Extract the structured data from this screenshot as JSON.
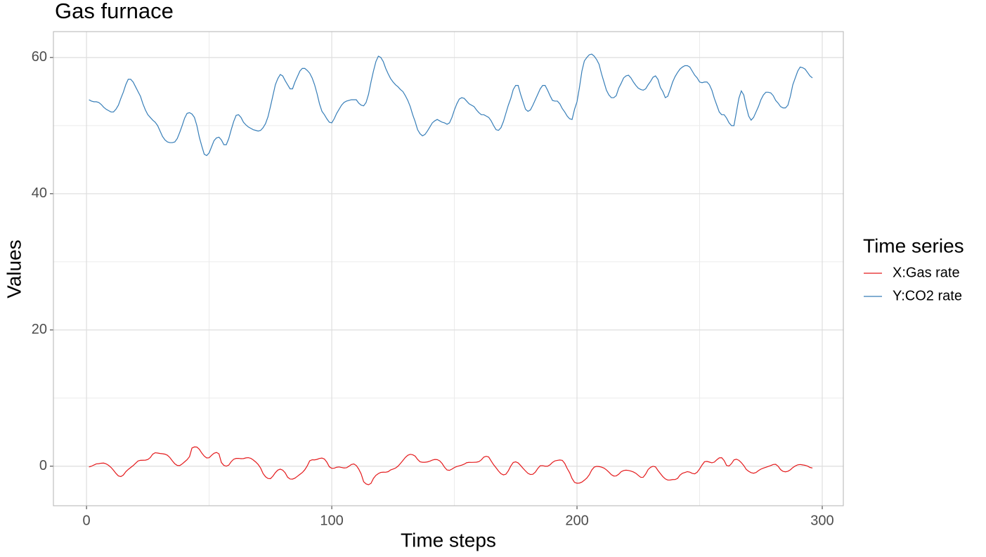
{
  "chart_data": {
    "type": "line",
    "title": "Gas furnace",
    "x_label": "Time steps",
    "y_label": "Values",
    "legend_title": "Time series",
    "legend_position": "right",
    "grid": true,
    "xlim": [
      -13.5,
      308.6
    ],
    "ylim": [
      -5.8,
      63.8
    ],
    "xticks": [
      0,
      100,
      200,
      300
    ],
    "yticks": [
      0,
      20,
      40,
      60
    ],
    "x_minor_ticks": [
      50,
      150,
      250
    ],
    "y_minor_ticks": [
      10,
      30,
      50
    ],
    "x": [
      1,
      2,
      3,
      4,
      5,
      6,
      7,
      8,
      9,
      10,
      11,
      12,
      13,
      14,
      15,
      16,
      17,
      18,
      19,
      20,
      21,
      22,
      23,
      24,
      25,
      26,
      27,
      28,
      29,
      30,
      31,
      32,
      33,
      34,
      35,
      36,
      37,
      38,
      39,
      40,
      41,
      42,
      43,
      44,
      45,
      46,
      47,
      48,
      49,
      50,
      51,
      52,
      53,
      54,
      55,
      56,
      57,
      58,
      59,
      60,
      61,
      62,
      63,
      64,
      65,
      66,
      67,
      68,
      69,
      70,
      71,
      72,
      73,
      74,
      75,
      76,
      77,
      78,
      79,
      80,
      81,
      82,
      83,
      84,
      85,
      86,
      87,
      88,
      89,
      90,
      91,
      92,
      93,
      94,
      95,
      96,
      97,
      98,
      99,
      100,
      101,
      102,
      103,
      104,
      105,
      106,
      107,
      108,
      109,
      110,
      111,
      112,
      113,
      114,
      115,
      116,
      117,
      118,
      119,
      120,
      121,
      122,
      123,
      124,
      125,
      126,
      127,
      128,
      129,
      130,
      131,
      132,
      133,
      134,
      135,
      136,
      137,
      138,
      139,
      140,
      141,
      142,
      143,
      144,
      145,
      146,
      147,
      148,
      149,
      150,
      151,
      152,
      153,
      154,
      155,
      156,
      157,
      158,
      159,
      160,
      161,
      162,
      163,
      164,
      165,
      166,
      167,
      168,
      169,
      170,
      171,
      172,
      173,
      174,
      175,
      176,
      177,
      178,
      179,
      180,
      181,
      182,
      183,
      184,
      185,
      186,
      187,
      188,
      189,
      190,
      191,
      192,
      193,
      194,
      195,
      196,
      197,
      198,
      199,
      200,
      201,
      202,
      203,
      204,
      205,
      206,
      207,
      208,
      209,
      210,
      211,
      212,
      213,
      214,
      215,
      216,
      217,
      218,
      219,
      220,
      221,
      222,
      223,
      224,
      225,
      226,
      227,
      228,
      229,
      230,
      231,
      232,
      233,
      234,
      235,
      236,
      237,
      238,
      239,
      240,
      241,
      242,
      243,
      244,
      245,
      246,
      247,
      248,
      249,
      250,
      251,
      252,
      253,
      254,
      255,
      256,
      257,
      258,
      259,
      260,
      261,
      262,
      263,
      264,
      265,
      266,
      267,
      268,
      269,
      270,
      271,
      272,
      273,
      274,
      275,
      276,
      277,
      278,
      279,
      280,
      281,
      282,
      283,
      284,
      285,
      286,
      287,
      288,
      289,
      290,
      291,
      292,
      293,
      294,
      295,
      296
    ],
    "series": [
      {
        "name": "X:Gas rate",
        "color": "#e41a1c",
        "values": [
          -0.109,
          0.0,
          0.178,
          0.339,
          0.373,
          0.441,
          0.461,
          0.348,
          0.127,
          -0.18,
          -0.588,
          -1.055,
          -1.421,
          -1.52,
          -1.302,
          -0.814,
          -0.475,
          -0.193,
          0.088,
          0.435,
          0.771,
          0.866,
          0.875,
          0.891,
          0.987,
          1.263,
          1.775,
          1.976,
          1.934,
          1.866,
          1.832,
          1.767,
          1.608,
          1.265,
          0.79,
          0.36,
          0.115,
          0.088,
          0.331,
          0.645,
          0.96,
          1.409,
          2.67,
          2.834,
          2.812,
          2.483,
          1.929,
          1.485,
          1.214,
          1.239,
          1.608,
          1.905,
          2.023,
          1.815,
          0.535,
          0.122,
          0.009,
          0.164,
          0.671,
          1.019,
          1.146,
          1.155,
          1.112,
          1.121,
          1.223,
          1.257,
          1.157,
          0.913,
          0.62,
          0.255,
          -0.28,
          -1.08,
          -1.551,
          -1.799,
          -1.825,
          -1.456,
          -0.944,
          -0.57,
          -0.431,
          -0.577,
          -0.96,
          -1.616,
          -1.875,
          -1.891,
          -1.746,
          -1.474,
          -1.201,
          -0.927,
          -0.524,
          0.04,
          0.788,
          0.943,
          0.93,
          1.006,
          1.137,
          1.198,
          1.054,
          0.595,
          -0.08,
          -0.314,
          -0.288,
          -0.153,
          -0.109,
          -0.187,
          -0.255,
          -0.229,
          -0.007,
          0.254,
          0.33,
          0.102,
          -0.423,
          -1.139,
          -2.275,
          -2.594,
          -2.716,
          -2.51,
          -1.79,
          -1.346,
          -1.081,
          -0.91,
          -0.876,
          -0.885,
          -0.8,
          -0.544,
          -0.416,
          -0.271,
          0.0,
          0.403,
          0.841,
          1.285,
          1.607,
          1.746,
          1.683,
          1.485,
          0.993,
          0.648,
          0.577,
          0.577,
          0.632,
          0.747,
          0.9,
          0.993,
          0.968,
          0.79,
          0.399,
          -0.161,
          -0.553,
          -0.603,
          -0.424,
          -0.194,
          -0.049,
          0.06,
          0.161,
          0.301,
          0.517,
          0.566,
          0.56,
          0.573,
          0.592,
          0.671,
          0.933,
          1.337,
          1.46,
          1.353,
          0.772,
          0.218,
          -0.237,
          -0.714,
          -1.099,
          -1.269,
          -1.175,
          -0.676,
          0.033,
          0.556,
          0.643,
          0.484,
          0.109,
          -0.31,
          -0.697,
          -1.047,
          -1.218,
          -1.183,
          -0.873,
          -0.336,
          0.063,
          0.084,
          0.0,
          0.001,
          0.209,
          0.556,
          0.782,
          0.858,
          0.918,
          0.862,
          0.416,
          -0.336,
          -0.959,
          -1.813,
          -2.378,
          -2.499,
          -2.473,
          -2.33,
          -2.053,
          -1.739,
          -1.261,
          -0.569,
          -0.137,
          -0.024,
          -0.05,
          -0.135,
          -0.276,
          -0.534,
          -0.871,
          -1.243,
          -1.439,
          -1.422,
          -1.175,
          -0.813,
          -0.634,
          -0.582,
          -0.625,
          -0.713,
          -0.848,
          -1.039,
          -1.346,
          -1.628,
          -1.619,
          -1.149,
          -0.488,
          -0.16,
          -0.007,
          -0.092,
          -0.62,
          -1.086,
          -1.525,
          -1.858,
          -2.029,
          -2.024,
          -1.961,
          -1.952,
          -1.794,
          -1.302,
          -1.03,
          -0.918,
          -0.798,
          -0.867,
          -1.047,
          -1.123,
          -0.876,
          -0.395,
          0.185,
          0.662,
          0.709,
          0.605,
          0.501,
          0.603,
          0.943,
          1.223,
          1.249,
          0.824,
          0.102,
          0.025,
          0.382,
          0.922,
          1.032,
          0.866,
          0.527,
          0.093,
          -0.458,
          -0.748,
          -0.947,
          -1.029,
          -0.928,
          -0.645,
          -0.424,
          -0.276,
          -0.158,
          -0.033,
          0.102,
          0.251,
          0.28,
          0.0,
          -0.493,
          -0.759,
          -0.824,
          -0.74,
          -0.528,
          -0.204,
          0.034,
          0.204,
          0.253,
          0.195,
          0.131,
          0.017,
          -0.182,
          -0.262
        ]
      },
      {
        "name": "Y:CO2 rate",
        "color": "#377eb8",
        "values": [
          53.8,
          53.6,
          53.5,
          53.5,
          53.4,
          53.1,
          52.7,
          52.4,
          52.2,
          52.0,
          52.0,
          52.4,
          53.0,
          54.0,
          54.9,
          56.0,
          56.8,
          56.8,
          56.4,
          55.7,
          55.0,
          54.3,
          53.2,
          52.3,
          51.6,
          51.2,
          50.8,
          50.5,
          50.0,
          49.2,
          48.4,
          47.9,
          47.6,
          47.5,
          47.5,
          47.6,
          48.1,
          49.0,
          50.0,
          51.1,
          51.8,
          51.9,
          51.7,
          51.2,
          50.0,
          48.3,
          47.0,
          45.8,
          45.6,
          46.0,
          46.9,
          47.8,
          48.2,
          48.3,
          47.9,
          47.2,
          47.2,
          48.1,
          49.4,
          50.6,
          51.5,
          51.6,
          51.2,
          50.5,
          50.1,
          49.8,
          49.6,
          49.4,
          49.3,
          49.2,
          49.3,
          49.7,
          50.3,
          51.3,
          52.8,
          54.4,
          56.0,
          56.9,
          57.5,
          57.3,
          56.6,
          56.0,
          55.4,
          55.4,
          56.4,
          57.2,
          58.0,
          58.4,
          58.4,
          58.1,
          57.7,
          57.0,
          56.0,
          54.7,
          53.2,
          52.1,
          51.6,
          51.0,
          50.5,
          50.4,
          51.0,
          51.8,
          52.4,
          53.0,
          53.4,
          53.6,
          53.7,
          53.8,
          53.8,
          53.8,
          53.3,
          53.0,
          52.9,
          53.4,
          54.6,
          56.4,
          58.0,
          59.4,
          60.2,
          60.0,
          59.4,
          58.4,
          57.6,
          56.9,
          56.4,
          56.0,
          55.7,
          55.3,
          55.0,
          54.4,
          53.7,
          52.8,
          51.6,
          50.6,
          49.4,
          48.8,
          48.5,
          48.7,
          49.2,
          49.8,
          50.4,
          50.7,
          50.9,
          50.7,
          50.5,
          50.4,
          50.2,
          50.4,
          51.2,
          52.3,
          53.2,
          53.9,
          54.1,
          54.0,
          53.6,
          53.2,
          53.0,
          52.8,
          52.3,
          51.9,
          51.6,
          51.6,
          51.4,
          51.2,
          50.7,
          50.0,
          49.4,
          49.3,
          49.7,
          50.6,
          51.8,
          53.0,
          54.0,
          55.3,
          55.9,
          55.9,
          54.6,
          53.5,
          52.4,
          52.1,
          52.3,
          53.0,
          53.8,
          54.6,
          55.4,
          55.9,
          55.9,
          55.2,
          54.4,
          53.7,
          53.6,
          53.6,
          53.2,
          52.5,
          52.0,
          51.4,
          51.0,
          50.9,
          52.4,
          53.5,
          55.6,
          58.0,
          59.5,
          60.0,
          60.4,
          60.5,
          60.2,
          59.7,
          59.0,
          57.6,
          56.4,
          55.2,
          54.5,
          54.1,
          54.1,
          54.4,
          55.5,
          56.2,
          57.0,
          57.3,
          57.4,
          57.0,
          56.4,
          55.9,
          55.5,
          55.3,
          55.2,
          55.4,
          56.0,
          56.5,
          57.1,
          57.3,
          56.8,
          55.6,
          55.0,
          54.1,
          54.3,
          55.3,
          56.4,
          57.2,
          57.8,
          58.3,
          58.6,
          58.8,
          58.8,
          58.6,
          58.0,
          57.4,
          57.0,
          56.4,
          56.3,
          56.4,
          56.4,
          56.0,
          55.2,
          54.0,
          53.0,
          52.0,
          51.6,
          51.6,
          51.1,
          50.4,
          50.0,
          50.0,
          52.0,
          54.0,
          55.1,
          54.5,
          52.8,
          51.4,
          50.8,
          51.2,
          52.0,
          52.8,
          53.8,
          54.5,
          54.9,
          54.9,
          54.8,
          54.4,
          53.7,
          53.3,
          52.8,
          52.6,
          52.6,
          53.0,
          54.3,
          56.0,
          57.0,
          58.0,
          58.6,
          58.5,
          58.3,
          57.8,
          57.3,
          57.0
        ]
      }
    ]
  }
}
